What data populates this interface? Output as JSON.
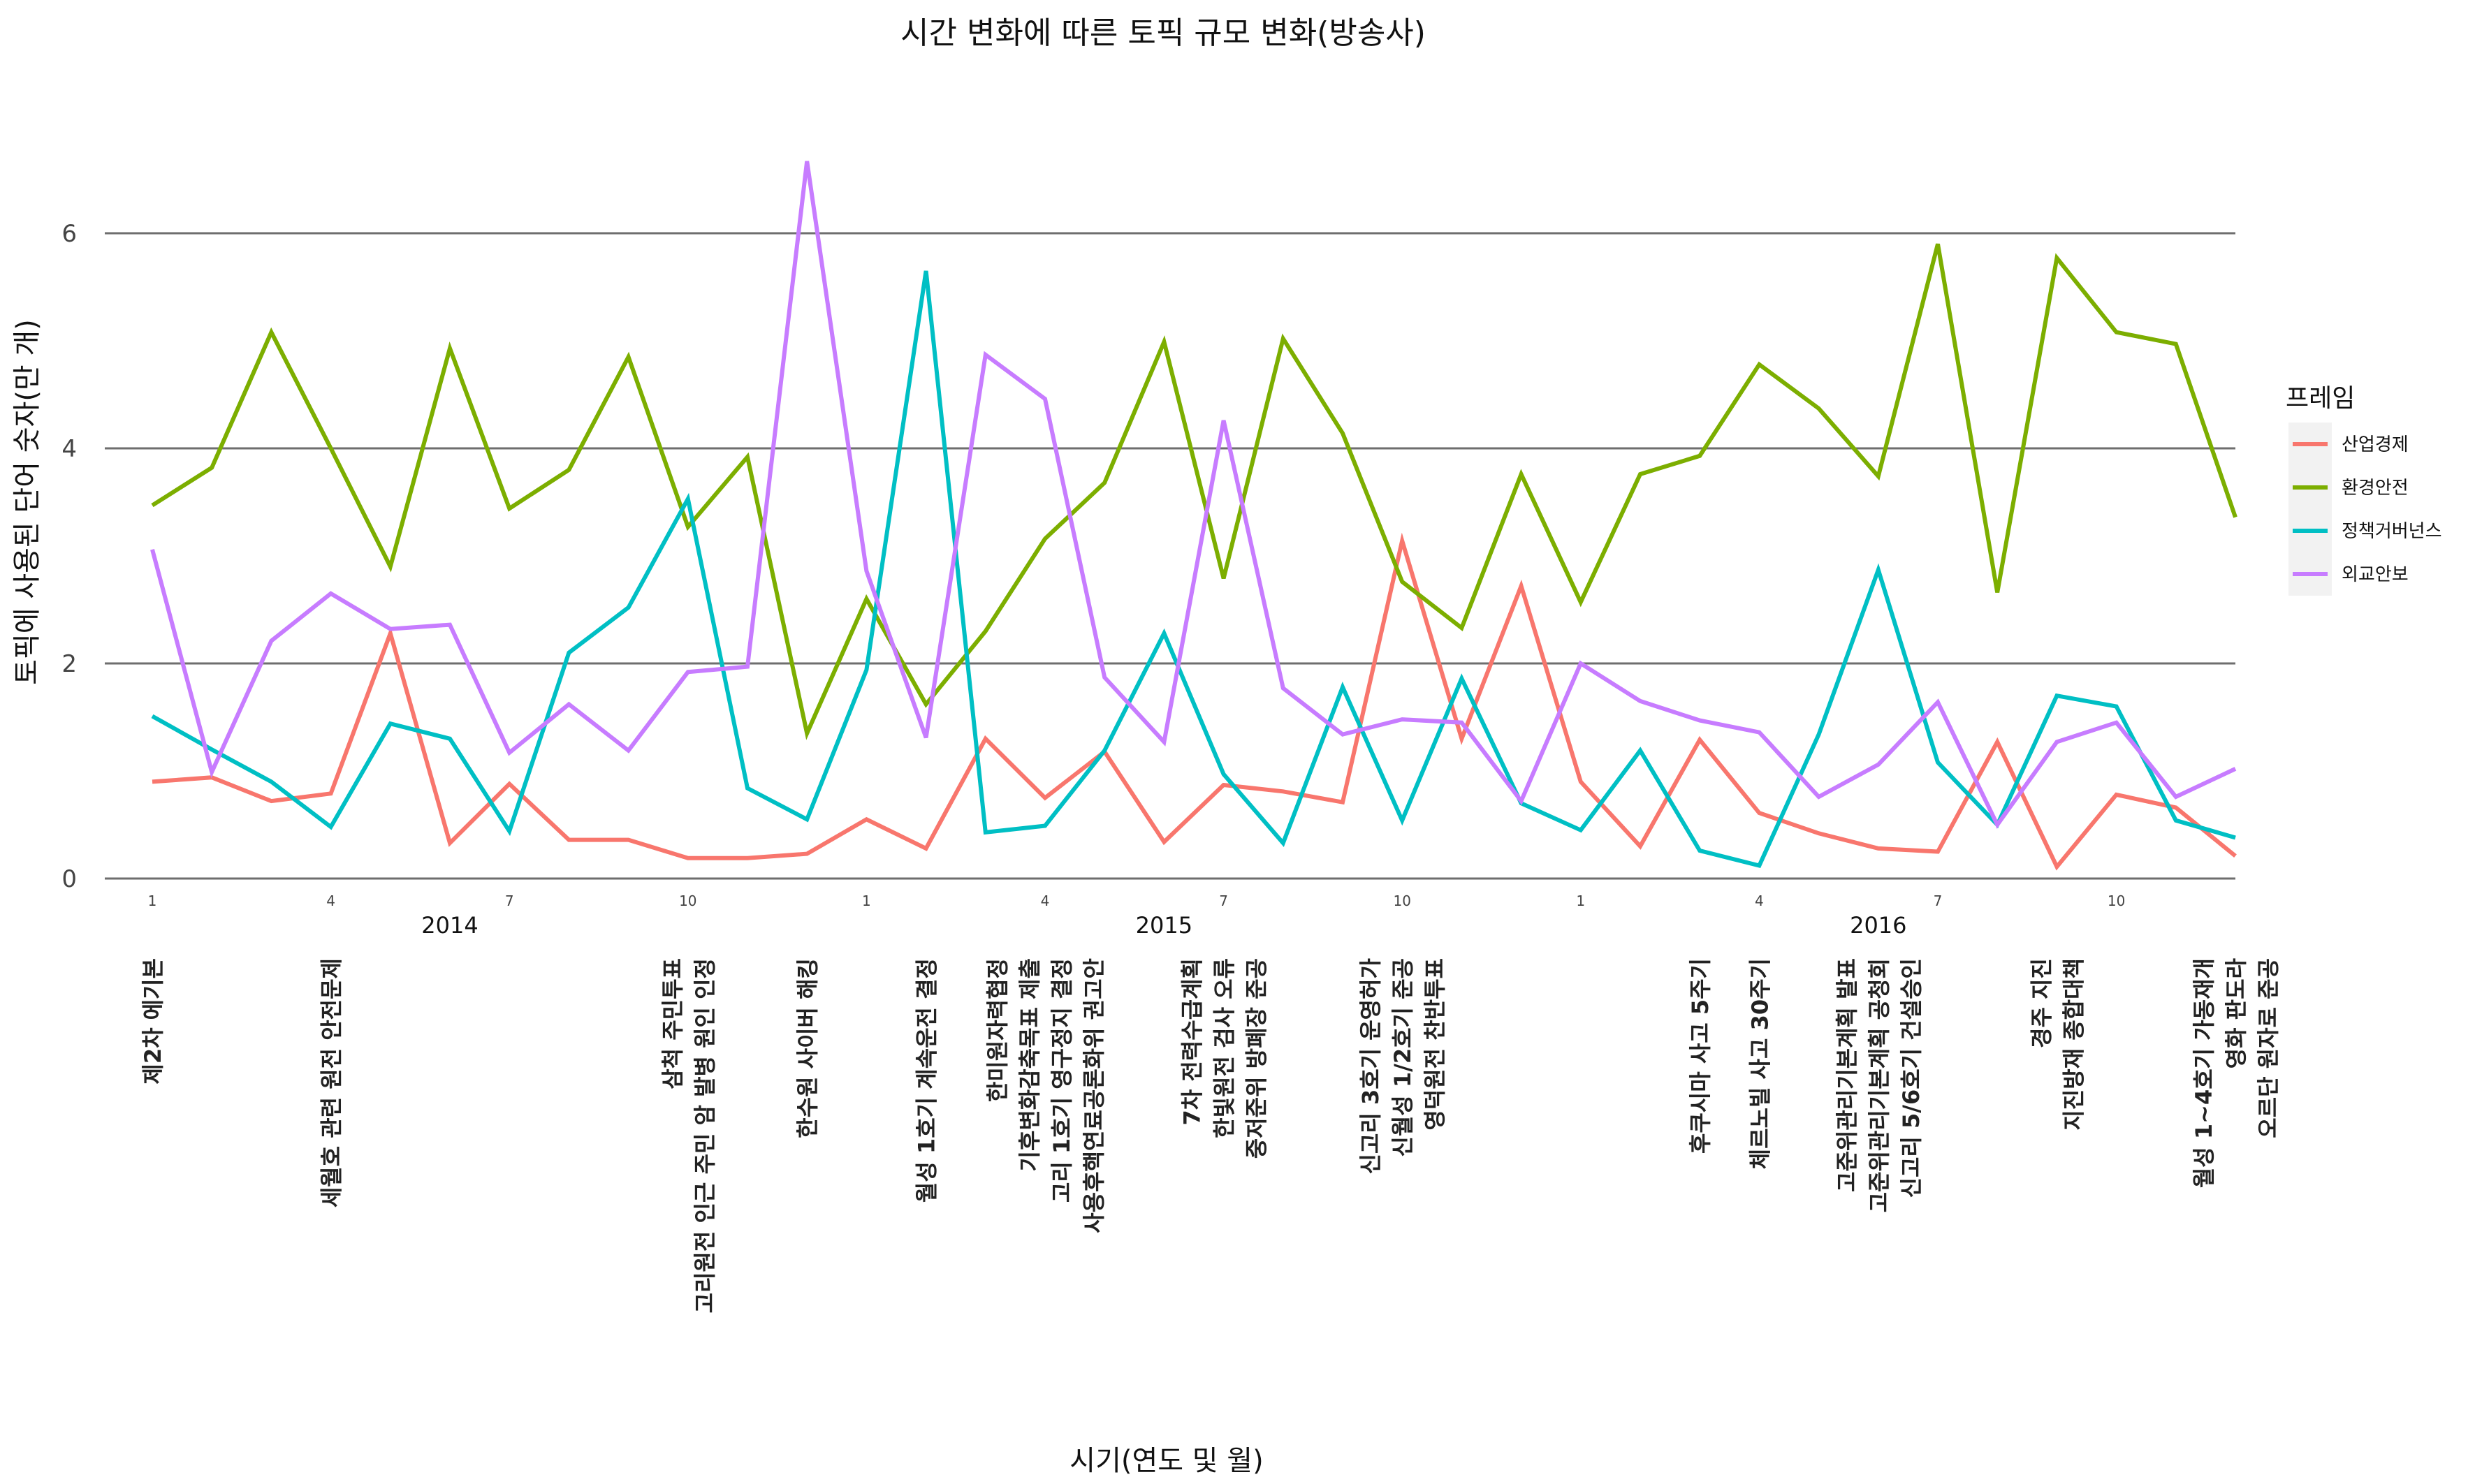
{
  "chart_data": {
    "type": "line",
    "title": "시간 변화에 따른 토픽 규모 변화(방송사)",
    "xlabel": "시기(연도 및 월)",
    "ylabel": "토픽에 사용된 단어 숫자(만 개)",
    "ylim": [
      0,
      7
    ],
    "y_ticks": [
      0,
      2,
      4,
      6
    ],
    "grid": "horizontal-major",
    "legend_title": "프레임",
    "legend_position": "right",
    "x_month_ticks": [
      "1",
      "4",
      "7",
      "10",
      "1",
      "4",
      "7",
      "10",
      "1",
      "4",
      "7",
      "10"
    ],
    "x_years": [
      "2014",
      "2015",
      "2016"
    ],
    "x": [
      "2014-01",
      "2014-02",
      "2014-03",
      "2014-04",
      "2014-05",
      "2014-06",
      "2014-07",
      "2014-08",
      "2014-09",
      "2014-10",
      "2014-11",
      "2014-12",
      "2015-01",
      "2015-02",
      "2015-03",
      "2015-04",
      "2015-05",
      "2015-06",
      "2015-07",
      "2015-08",
      "2015-09",
      "2015-10",
      "2015-11",
      "2015-12",
      "2016-01",
      "2016-02",
      "2016-03",
      "2016-04",
      "2016-05",
      "2016-06",
      "2016-07",
      "2016-08",
      "2016-09",
      "2016-10",
      "2016-11",
      "2016-12"
    ],
    "series": [
      {
        "name": "산업경제",
        "color": "#F8766D",
        "values": [
          0.9,
          0.94,
          0.72,
          0.79,
          2.28,
          0.33,
          0.88,
          0.36,
          0.36,
          0.19,
          0.19,
          0.23,
          0.55,
          0.28,
          1.3,
          0.75,
          1.18,
          0.34,
          0.87,
          0.81,
          0.71,
          3.14,
          1.3,
          2.72,
          0.9,
          0.3,
          1.29,
          0.61,
          0.42,
          0.28,
          0.25,
          1.27,
          0.11,
          0.78,
          0.66,
          0.21
        ]
      },
      {
        "name": "환경안전",
        "color": "#7CAE00",
        "values": [
          3.47,
          3.82,
          5.08,
          4.0,
          2.9,
          4.93,
          3.44,
          3.8,
          4.85,
          3.27,
          3.92,
          1.35,
          2.6,
          1.62,
          2.3,
          3.16,
          3.68,
          4.99,
          2.79,
          5.02,
          4.14,
          2.76,
          2.33,
          3.76,
          2.57,
          3.76,
          3.93,
          4.78,
          4.37,
          3.74,
          5.9,
          2.66,
          5.77,
          5.08,
          4.97,
          3.36
        ]
      },
      {
        "name": "정책거버넌스",
        "color": "#00BFC4",
        "values": [
          1.51,
          1.2,
          0.9,
          0.48,
          1.44,
          1.3,
          0.44,
          2.1,
          2.52,
          3.53,
          0.84,
          0.55,
          1.94,
          5.65,
          0.43,
          0.49,
          1.19,
          2.28,
          0.97,
          0.33,
          1.78,
          0.54,
          1.86,
          0.7,
          0.45,
          1.19,
          0.26,
          0.12,
          1.34,
          2.87,
          1.08,
          0.5,
          1.7,
          1.6,
          0.54,
          0.38
        ]
      },
      {
        "name": "외교안보",
        "color": "#C77CFF",
        "values": [
          3.06,
          0.99,
          2.21,
          2.65,
          2.32,
          2.36,
          1.17,
          1.62,
          1.19,
          1.92,
          1.97,
          6.67,
          2.86,
          1.31,
          4.87,
          4.46,
          1.87,
          1.27,
          4.26,
          1.77,
          1.34,
          1.48,
          1.45,
          0.72,
          2.0,
          1.65,
          1.47,
          1.36,
          0.76,
          1.06,
          1.64,
          0.5,
          1.27,
          1.45,
          0.76,
          1.02
        ]
      }
    ],
    "annotations": [
      {
        "x": "2014-01",
        "lines": [
          "제2차 에기본"
        ]
      },
      {
        "x": "2014-04",
        "lines": [
          "세월호 관련 원전 안전문제"
        ]
      },
      {
        "x": "2014-10",
        "lines": [
          "삼척 주민투표",
          "고리원전 인근 주민 암 발병 원인 인정"
        ]
      },
      {
        "x": "2014-12",
        "lines": [
          "한수원 사이버 해킹"
        ]
      },
      {
        "x": "2015-02",
        "lines": [
          "월성 1호기 계속운전 결정"
        ]
      },
      {
        "x": "2015-04",
        "lines": [
          "한미원자력협정",
          "기후변화감축목표 제출",
          "고리 1호기 영구정지 결정",
          "사용후핵연료공론화위 권고안"
        ]
      },
      {
        "x": "2015-07",
        "lines": [
          "7차 전력수급계획",
          "한빛원전 검사 오류",
          "중저준위 방폐장 준공"
        ]
      },
      {
        "x": "2015-10",
        "lines": [
          "신고리 3호기 운영허가",
          "신월성 1/2호기 준공",
          "영덕원전 찬반투표"
        ]
      },
      {
        "x": "2016-03",
        "lines": [
          "후쿠시마 사고 5주기"
        ]
      },
      {
        "x": "2016-04",
        "lines": [
          "체르노빌 사고 30주기"
        ]
      },
      {
        "x": "2016-06",
        "lines": [
          "고준위관리기본계획 발표",
          "고준위관리기본계획 공청회",
          "신고리 5/6호기 건설승인"
        ]
      },
      {
        "x": "2016-09",
        "lines": [
          "경주 지진",
          "지진방재 종합대책"
        ]
      },
      {
        "x": "2016-12",
        "lines": [
          "월성 1~4호기 가동재개",
          "영화 판도라",
          "오르단 원자로 준공"
        ]
      }
    ]
  }
}
